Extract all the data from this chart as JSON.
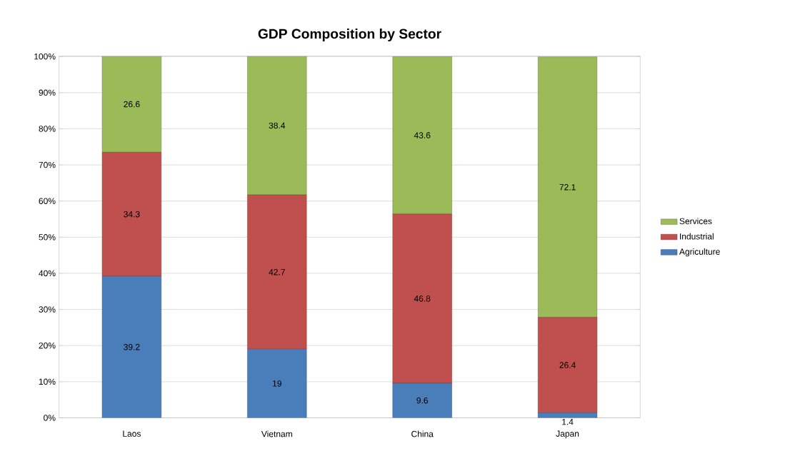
{
  "chart_data": {
    "type": "bar",
    "title": "GDP Composition by Sector",
    "stacked": true,
    "categories": [
      "Laos",
      "Vietnam",
      "China",
      "Japan"
    ],
    "series": [
      {
        "name": "Agriculture",
        "color": "#4a7ebb",
        "values": [
          39.2,
          19,
          9.6,
          1.4
        ]
      },
      {
        "name": "Industrial",
        "color": "#c0504d",
        "values": [
          34.3,
          42.7,
          46.8,
          26.4
        ]
      },
      {
        "name": "Services",
        "color": "#9bbb59",
        "values": [
          26.6,
          38.4,
          43.6,
          72.1
        ]
      }
    ],
    "ylim": [
      0,
      100.1
    ],
    "yticks": [
      {
        "value": 0,
        "label": "0%"
      },
      {
        "value": 10,
        "label": "10%"
      },
      {
        "value": 20,
        "label": "20%"
      },
      {
        "value": 30,
        "label": "30%"
      },
      {
        "value": 40,
        "label": "40%"
      },
      {
        "value": 50,
        "label": "50%"
      },
      {
        "value": 60,
        "label": "60%"
      },
      {
        "value": 70,
        "label": "70%"
      },
      {
        "value": 80,
        "label": "80%"
      },
      {
        "value": 90,
        "label": "90%"
      },
      {
        "value": 100,
        "label": "100%"
      }
    ],
    "grid": "y",
    "legend": "right",
    "data_labels": true
  }
}
